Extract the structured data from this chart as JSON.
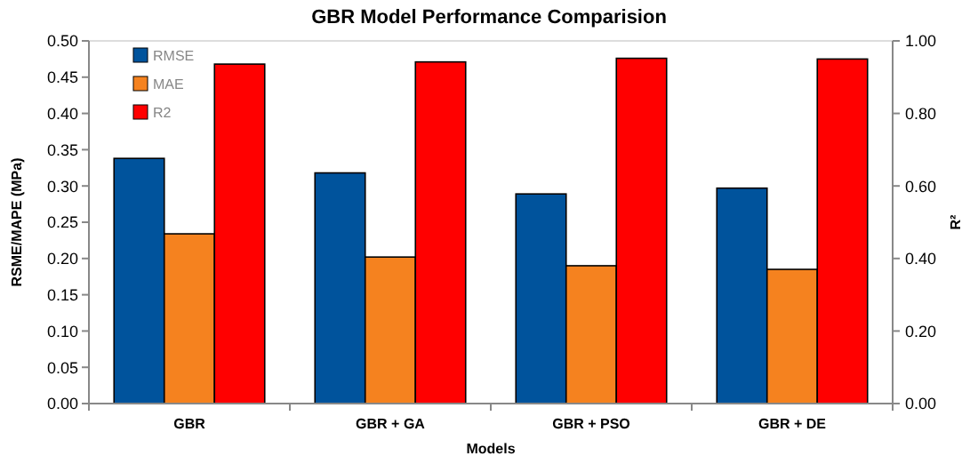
{
  "chart_data": {
    "type": "bar",
    "title": "GBR Model Performance Comparision",
    "xlabel": "Models",
    "ylabel": "RSME/MAPE (MPa)",
    "y2label": "R²",
    "categories": [
      "GBR",
      "GBR + GA",
      "GBR + PSO",
      "GBR + DE"
    ],
    "series": [
      {
        "name": "RMSE",
        "color": "#00539c",
        "values": [
          0.338,
          0.318,
          0.289,
          0.297
        ]
      },
      {
        "name": "MAE",
        "color": "#f5821f",
        "values": [
          0.234,
          0.202,
          0.19,
          0.185
        ]
      },
      {
        "name": "R2",
        "color": "#ff0000",
        "values": [
          0.936,
          0.942,
          0.952,
          0.95
        ],
        "axis": "y2"
      }
    ],
    "ylim": [
      0,
      0.5
    ],
    "yticks": [
      {
        "value": 0,
        "label": "0.00"
      },
      {
        "value": 0.05,
        "label": "0.05"
      },
      {
        "value": 0.1,
        "label": "0.10"
      },
      {
        "value": 0.15,
        "label": "0.15"
      },
      {
        "value": 0.2,
        "label": "0.20"
      },
      {
        "value": 0.25,
        "label": "0.25"
      },
      {
        "value": 0.3,
        "label": "0.30"
      },
      {
        "value": 0.35,
        "label": "0.35"
      },
      {
        "value": 0.4,
        "label": "0.40"
      },
      {
        "value": 0.45,
        "label": "0.45"
      },
      {
        "value": 0.5,
        "label": "0.50"
      }
    ],
    "y2lim": [
      0,
      1
    ],
    "y2ticks": [
      {
        "value": 0,
        "label": "0.00"
      },
      {
        "value": 0.2,
        "label": "0.20"
      },
      {
        "value": 0.4,
        "label": "0.40"
      },
      {
        "value": 0.6,
        "label": "0.60"
      },
      {
        "value": 0.8,
        "label": "0.80"
      },
      {
        "value": 1,
        "label": "1.00"
      }
    ],
    "legend": "top left",
    "grid": false
  }
}
